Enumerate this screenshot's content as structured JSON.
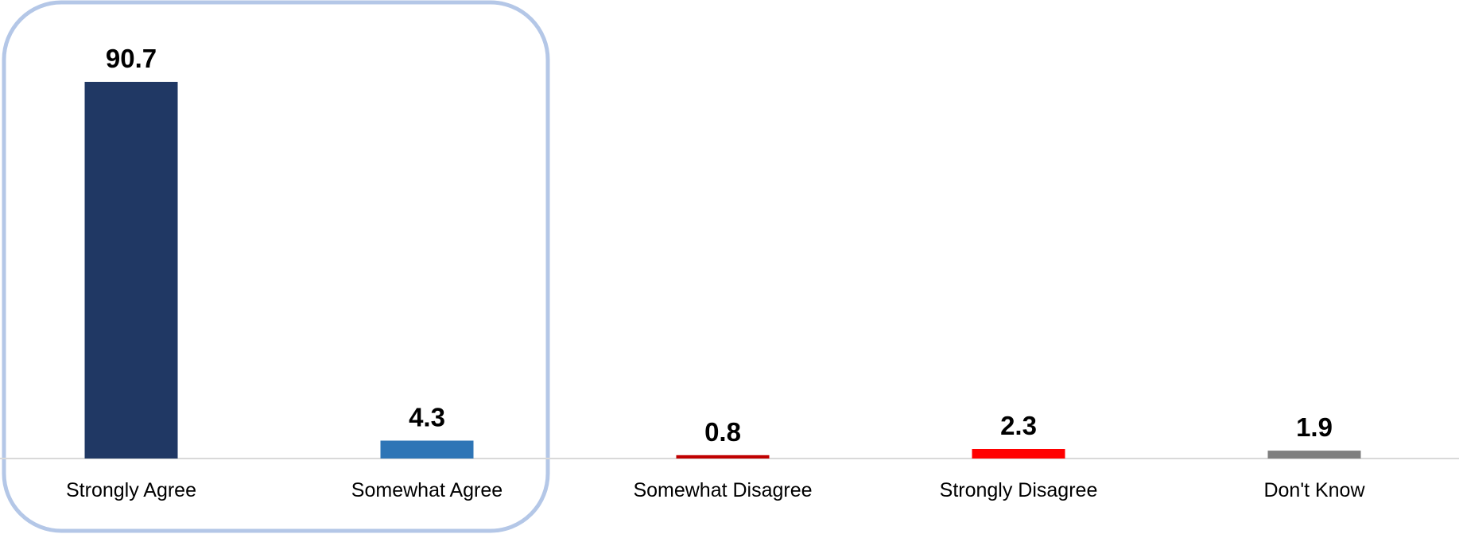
{
  "chart_data": {
    "type": "bar",
    "categories": [
      "Strongly Agree",
      "Somewhat Agree",
      "Somewhat Disagree",
      "Strongly Disagree",
      "Don't Know"
    ],
    "values": [
      90.7,
      4.3,
      0.8,
      2.3,
      1.9
    ],
    "value_labels": [
      "90.7",
      "4.3",
      "0.8",
      "2.3",
      "1.9"
    ],
    "colors": [
      "#203864",
      "#2e75b6",
      "#c00000",
      "#ff0000",
      "#7f7f7f"
    ],
    "highlight_box_color": "#b4c7e7",
    "baseline_color": "#d9d9d9",
    "highlighted_categories": [
      "Strongly Agree",
      "Somewhat Agree"
    ],
    "ylim": [
      0,
      90.7
    ],
    "grid": false,
    "title": "",
    "xlabel": "",
    "ylabel": ""
  }
}
